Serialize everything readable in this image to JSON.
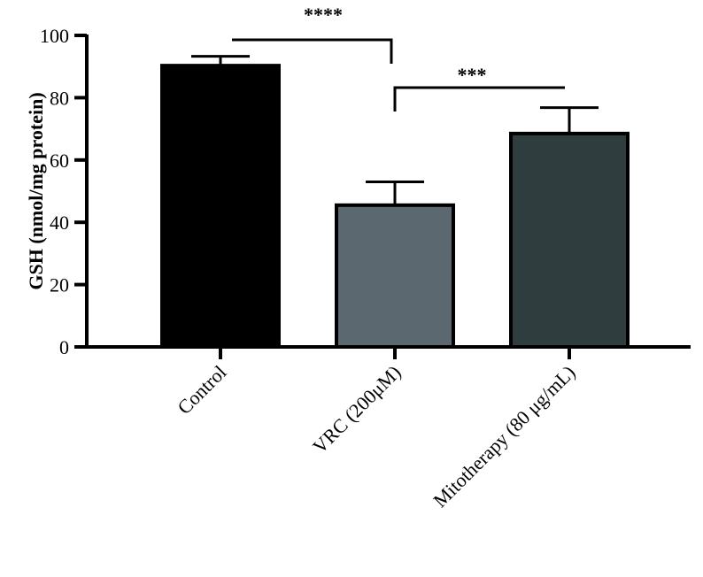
{
  "chart_data": {
    "type": "bar",
    "ylabel": "GSH (nmol/mg protein)",
    "categories": [
      "Control",
      "VRC (200μM)",
      "Mitotherapy (80 μg/mL)"
    ],
    "values": [
      90.3,
      45.5,
      68.5
    ],
    "errors": [
      3,
      7.5,
      8.3
    ],
    "colors": [
      "#000000",
      "#5b6870",
      "#303d3e"
    ],
    "ylim": [
      0,
      100
    ],
    "yticks": [
      0,
      20,
      40,
      60,
      80,
      100
    ],
    "annotations": [
      {
        "text": "****",
        "from": 0,
        "to": 1
      },
      {
        "text": "***",
        "from": 1,
        "to": 2
      }
    ]
  }
}
